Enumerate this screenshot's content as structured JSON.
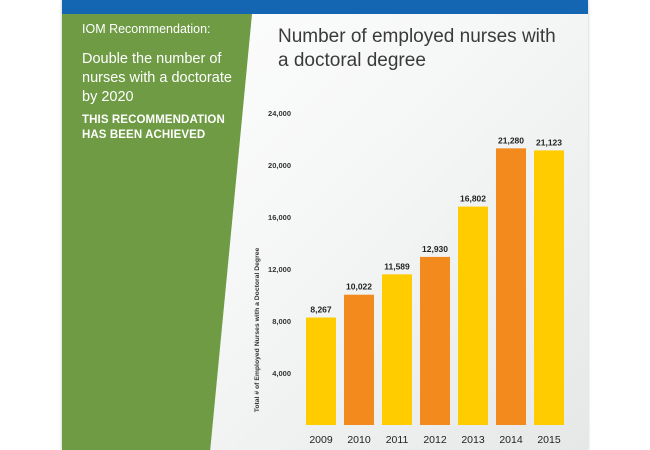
{
  "sidebar": {
    "recommendation_label": "IOM Recommendation:",
    "recommendation_text": "Double the number of nurses with a doctorate by 2020",
    "achieved_text": "THIS RECOMMENDATION HAS BEEN ACHIEVED"
  },
  "colors": {
    "top_band": "#1466b3",
    "panel": "#6e9b44",
    "bar_yellow": "#ffcc00",
    "bar_orange": "#f28a1e"
  },
  "chart_data": {
    "type": "bar",
    "title": "Number of employed nurses with a doctoral degree",
    "ylabel": "Total # of Employed Nurses with a Doctoral Degree",
    "xlabel": "",
    "categories": [
      "2009",
      "2010",
      "2011",
      "2012",
      "2013",
      "2014",
      "2015"
    ],
    "values": [
      8267,
      10022,
      11589,
      12930,
      16802,
      21280,
      21123
    ],
    "value_labels": [
      "8,267",
      "10,022",
      "11,589",
      "12,930",
      "16,802",
      "21,280",
      "21,123"
    ],
    "bar_colors": [
      "#ffcc00",
      "#f28a1e",
      "#ffcc00",
      "#f28a1e",
      "#ffcc00",
      "#f28a1e",
      "#ffcc00"
    ],
    "yticks": [
      4000,
      8000,
      12000,
      16000,
      20000,
      24000
    ],
    "ytick_labels": [
      "4,000",
      "8,000",
      "12,000",
      "16,000",
      "20,000",
      "24,000"
    ],
    "ylim": [
      0,
      24000
    ],
    "grid": false,
    "legend": "none"
  }
}
